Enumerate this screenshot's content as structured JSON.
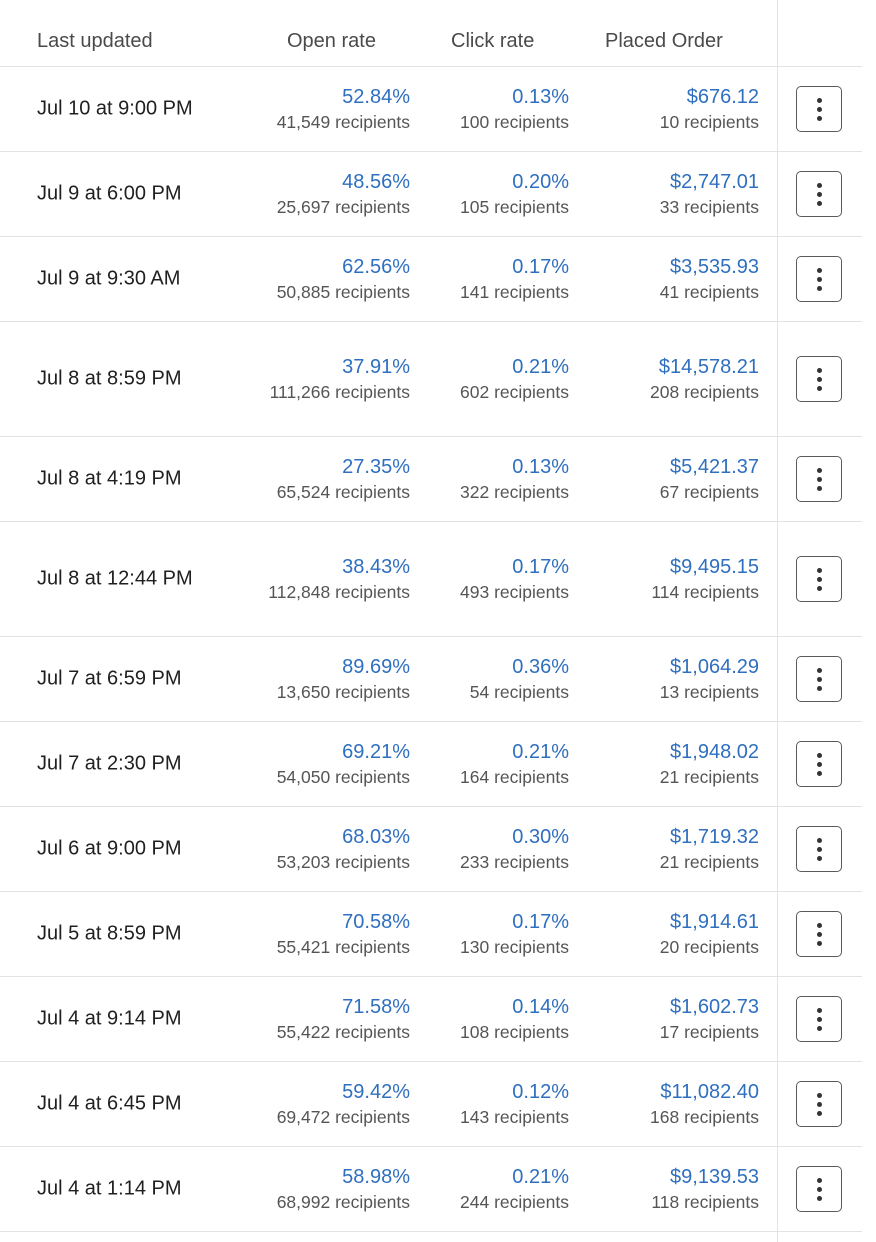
{
  "headers": {
    "last_updated": "Last updated",
    "open_rate": "Open rate",
    "click_rate": "Click rate",
    "placed_order": "Placed Order"
  },
  "rows": [
    {
      "date": "Jul 10 at 9:00 PM",
      "open_rate": "52.84%",
      "open_recipients": "41,549 recipients",
      "click_rate": "0.13%",
      "click_recipients": "100 recipients",
      "order_value": "$676.12",
      "order_recipients": "10 recipients"
    },
    {
      "date": "Jul 9 at 6:00 PM",
      "open_rate": "48.56%",
      "open_recipients": "25,697 recipients",
      "click_rate": "0.20%",
      "click_recipients": "105 recipients",
      "order_value": "$2,747.01",
      "order_recipients": "33 recipients"
    },
    {
      "date": "Jul 9 at 9:30 AM",
      "open_rate": "62.56%",
      "open_recipients": "50,885 recipients",
      "click_rate": "0.17%",
      "click_recipients": "141 recipients",
      "order_value": "$3,535.93",
      "order_recipients": "41 recipients"
    },
    {
      "date": "Jul 8 at 8:59 PM",
      "open_rate": "37.91%",
      "open_recipients": "111,266 recipients",
      "click_rate": "0.21%",
      "click_recipients": "602 recipients",
      "order_value": "$14,578.21",
      "order_recipients": "208 recipients"
    },
    {
      "date": "Jul 8 at 4:19 PM",
      "open_rate": "27.35%",
      "open_recipients": "65,524 recipients",
      "click_rate": "0.13%",
      "click_recipients": "322 recipients",
      "order_value": "$5,421.37",
      "order_recipients": "67 recipients"
    },
    {
      "date": "Jul 8 at 12:44 PM",
      "open_rate": "38.43%",
      "open_recipients": "112,848 recipients",
      "click_rate": "0.17%",
      "click_recipients": "493 recipients",
      "order_value": "$9,495.15",
      "order_recipients": "114 recipients"
    },
    {
      "date": "Jul 7 at 6:59 PM",
      "open_rate": "89.69%",
      "open_recipients": "13,650 recipients",
      "click_rate": "0.36%",
      "click_recipients": "54 recipients",
      "order_value": "$1,064.29",
      "order_recipients": "13 recipients"
    },
    {
      "date": "Jul 7 at 2:30 PM",
      "open_rate": "69.21%",
      "open_recipients": "54,050 recipients",
      "click_rate": "0.21%",
      "click_recipients": "164 recipients",
      "order_value": "$1,948.02",
      "order_recipients": "21 recipients"
    },
    {
      "date": "Jul 6 at 9:00 PM",
      "open_rate": "68.03%",
      "open_recipients": "53,203 recipients",
      "click_rate": "0.30%",
      "click_recipients": "233 recipients",
      "order_value": "$1,719.32",
      "order_recipients": "21 recipients"
    },
    {
      "date": "Jul 5 at 8:59 PM",
      "open_rate": "70.58%",
      "open_recipients": "55,421 recipients",
      "click_rate": "0.17%",
      "click_recipients": "130 recipients",
      "order_value": "$1,914.61",
      "order_recipients": "20 recipients"
    },
    {
      "date": "Jul 4 at 9:14 PM",
      "open_rate": "71.58%",
      "open_recipients": "55,422 recipients",
      "click_rate": "0.14%",
      "click_recipients": "108 recipients",
      "order_value": "$1,602.73",
      "order_recipients": "17 recipients"
    },
    {
      "date": "Jul 4 at 6:45 PM",
      "open_rate": "59.42%",
      "open_recipients": "69,472 recipients",
      "click_rate": "0.12%",
      "click_recipients": "143 recipients",
      "order_value": "$11,082.40",
      "order_recipients": "168 recipients"
    },
    {
      "date": "Jul 4 at 1:14 PM",
      "open_rate": "58.98%",
      "open_recipients": "68,992 recipients",
      "click_rate": "0.21%",
      "click_recipients": "244 recipients",
      "order_value": "$9,139.53",
      "order_recipients": "118 recipients"
    }
  ],
  "icons": {
    "row_menu": "more-vertical-icon"
  },
  "colors": {
    "link_value": "#2f6fbf",
    "divider": "#e3e3e3"
  }
}
